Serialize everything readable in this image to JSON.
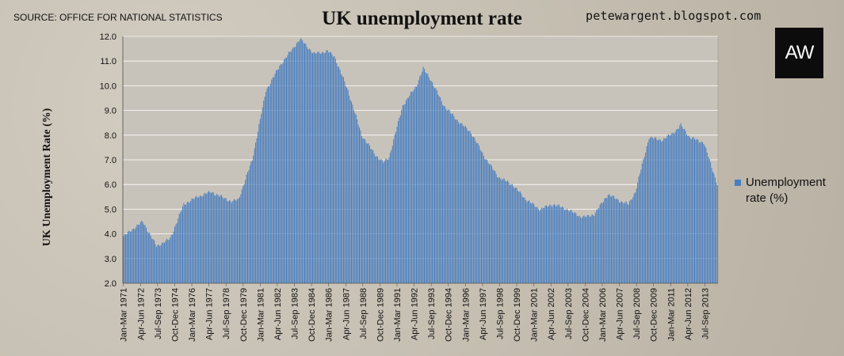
{
  "header": {
    "source": "SOURCE: OFFICE FOR NATIONAL STATISTICS",
    "blog": "petewargent.blogspot.com",
    "logo": "AW"
  },
  "colors": {
    "bar": "#4a7ebf",
    "bar_stroke": "#3a67a3",
    "plot_bg": "#c8c3ba",
    "grid": "#ffffff"
  },
  "chart_data": {
    "type": "bar",
    "title": "UK unemployment rate",
    "ylabel": "UK Unemployment Rate (%)",
    "xlabel": "",
    "ylim": [
      2.0,
      12.0
    ],
    "yticks": [
      "2.0",
      "3.0",
      "4.0",
      "5.0",
      "6.0",
      "7.0",
      "8.0",
      "9.0",
      "10.0",
      "11.0",
      "12.0"
    ],
    "grid": true,
    "legend_position": "right",
    "x_start": "Jan-Mar 1971",
    "x_frequency": "monthly rolling quarter",
    "xtick_labels": [
      "Jan-Mar 1971",
      "Apr-Jun 1972",
      "Jul-Sep 1973",
      "Oct-Dec 1974",
      "Jan-Mar 1976",
      "Apr-Jun 1977",
      "Jul-Sep 1978",
      "Oct-Dec 1979",
      "Jan-Mar 1981",
      "Apr-Jun 1982",
      "Jul-Sep 1983",
      "Oct-Dec 1984",
      "Jan-Mar 1986",
      "Apr-Jun 1987",
      "Jul-Sep 1988",
      "Oct-Dec 1989",
      "Jan-Mar 1991",
      "Apr-Jun 1992",
      "Jul-Sep 1993",
      "Oct-Dec 1994",
      "Jan-Mar 1996",
      "Apr-Jun 1997",
      "Jul-Sep 1998",
      "Oct-Dec 1999",
      "Jan-Mar 2001",
      "Apr-Jun 2002",
      "Jul-Sep 2003",
      "Oct-Dec 2004",
      "Jan-Mar 2006",
      "Apr-Jun 2007",
      "Jul-Sep 2008",
      "Oct-Dec 2009",
      "Jan-Mar 2011",
      "Apr-Jun 2012",
      "Jul-Sep 2013"
    ],
    "series": [
      {
        "name": "Unemployment rate (%)",
        "keypoints": [
          [
            "Jan-Mar 1971",
            3.9
          ],
          [
            "Jun-Aug 1972",
            4.5
          ],
          [
            "Jun-Aug 1973",
            3.5
          ],
          [
            "Jun-Aug 1974",
            3.8
          ],
          [
            "Jun-Aug 1975",
            5.2
          ],
          [
            "Jun-Aug 1976",
            5.5
          ],
          [
            "Jun-Aug 1977",
            5.7
          ],
          [
            "Dec-Feb 1979",
            5.3
          ],
          [
            "Jun-Aug 1979",
            5.4
          ],
          [
            "Jun-Aug 1980",
            7.0
          ],
          [
            "Jun-Aug 1981",
            9.8
          ],
          [
            "Jun-Aug 1982",
            10.8
          ],
          [
            "Dec-Feb 1984",
            11.9
          ],
          [
            "Dec-Feb 1985",
            11.3
          ],
          [
            "Dec-Feb 1986",
            11.4
          ],
          [
            "Jun-Aug 1986",
            11.2
          ],
          [
            "Jun-Aug 1987",
            9.8
          ],
          [
            "Jun-Aug 1988",
            8.0
          ],
          [
            "Jun-Aug 1989",
            7.2
          ],
          [
            "Jan-Mar 1990",
            6.9
          ],
          [
            "Jun-Aug 1990",
            7.1
          ],
          [
            "Jun-Aug 1991",
            9.2
          ],
          [
            "Jun-Aug 1992",
            10.0
          ],
          [
            "Dec-Feb 1993",
            10.7
          ],
          [
            "Jun-Aug 1993",
            10.3
          ],
          [
            "Jun-Aug 1994",
            9.2
          ],
          [
            "Jun-Aug 1995",
            8.6
          ],
          [
            "Jun-Aug 1996",
            8.1
          ],
          [
            "Jun-Aug 1997",
            7.1
          ],
          [
            "Jun-Aug 1998",
            6.3
          ],
          [
            "Jun-Aug 1999",
            6.0
          ],
          [
            "Jun-Aug 2000",
            5.4
          ],
          [
            "Jun-Aug 2001",
            5.0
          ],
          [
            "Jun-Aug 2002",
            5.2
          ],
          [
            "Jun-Aug 2003",
            5.0
          ],
          [
            "Jun-Aug 2004",
            4.7
          ],
          [
            "Dec-Feb 2005",
            4.7
          ],
          [
            "Jun-Aug 2005",
            4.8
          ],
          [
            "Jun-Aug 2006",
            5.6
          ],
          [
            "Jun-Aug 2007",
            5.3
          ],
          [
            "Dec-Feb 2008",
            5.2
          ],
          [
            "Jun-Aug 2008",
            5.7
          ],
          [
            "Jun-Aug 2009",
            7.9
          ],
          [
            "Jun-Aug 2010",
            7.8
          ],
          [
            "Jun-Aug 2011",
            8.2
          ],
          [
            "Oct-Dec 2011",
            8.4
          ],
          [
            "Jun-Aug 2012",
            7.9
          ],
          [
            "Jun-Aug 2013",
            7.7
          ],
          [
            "Jun-Aug 2014",
            6.0
          ]
        ]
      }
    ]
  }
}
